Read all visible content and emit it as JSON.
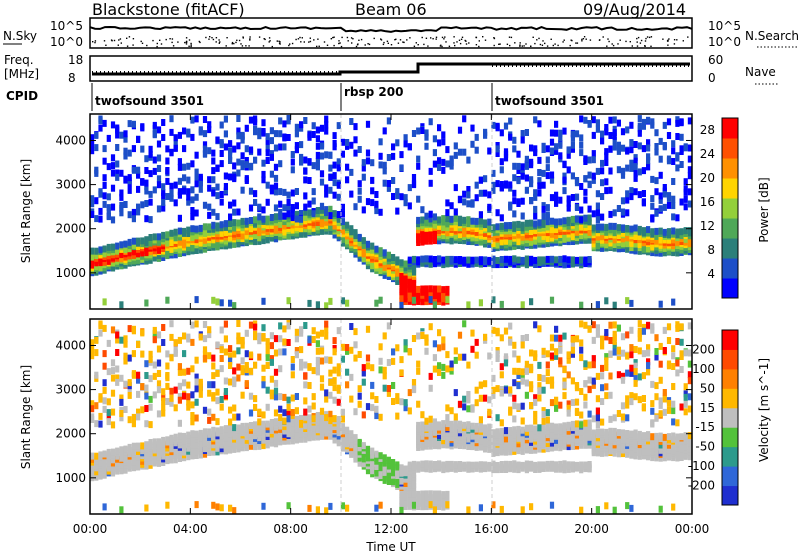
{
  "header": {
    "station": "Blackstone (fitACF)",
    "beam": "Beam 06",
    "date": "09/Aug/2014"
  },
  "noise_panel": {
    "left_label": "N.Sky",
    "right_label": "N.Search",
    "tick_top": "10^5",
    "tick_bottom": "10^0"
  },
  "freq_panel": {
    "left_label_1": "Freq.",
    "left_label_2": "[MHz]",
    "right_label": "Nave",
    "left_ticks": [
      "18",
      "8"
    ],
    "right_ticks": [
      "60",
      "0"
    ]
  },
  "cpid_panel": {
    "label": "CPID",
    "segments": [
      {
        "name": "twofsound 3501",
        "start_hour": 0
      },
      {
        "name": "rbsp 200",
        "start_hour": 10
      },
      {
        "name": "twofsound 3501",
        "start_hour": 16
      }
    ]
  },
  "chart_data": [
    {
      "type": "heatmap",
      "title": "",
      "xlabel": "Time UT",
      "ylabel": "Slant Range [km]",
      "xlim": [
        0,
        24
      ],
      "ylim": [
        180,
        4600
      ],
      "x_ticks": [
        "00:00",
        "04:00",
        "08:00",
        "12:00",
        "16:00",
        "20:00",
        "00:00"
      ],
      "y_ticks": [
        1000,
        2000,
        3000,
        4000
      ],
      "colorbar": {
        "label": "Power [dB]",
        "range": [
          0,
          30
        ],
        "ticks": [
          4,
          8,
          12,
          16,
          20,
          24,
          28
        ],
        "colors": [
          "#0000ff",
          "#1d4fc8",
          "#2b7f7a",
          "#4fa858",
          "#93cf3a",
          "#ffd400",
          "#ff9000",
          "#ff5000",
          "#ff0000"
        ]
      }
    },
    {
      "type": "heatmap",
      "title": "",
      "xlabel": "Time UT",
      "ylabel": "Slant Range [km]",
      "xlim": [
        0,
        24
      ],
      "ylim": [
        180,
        4600
      ],
      "x_ticks": [
        "00:00",
        "04:00",
        "08:00",
        "12:00",
        "16:00",
        "20:00",
        "00:00"
      ],
      "y_ticks": [
        1000,
        2000,
        3000,
        4000
      ],
      "colorbar": {
        "label": "Velocity [m s^-1]",
        "ticks": [
          200,
          100,
          50,
          15,
          -15,
          -50,
          -100,
          -200
        ],
        "colors": [
          "#1f2fd0",
          "#2f67d8",
          "#2c9a8c",
          "#53c23b",
          "#bfbfbf",
          "#ffb800",
          "#ff8000",
          "#ff4a00",
          "#ff0000"
        ]
      }
    }
  ]
}
